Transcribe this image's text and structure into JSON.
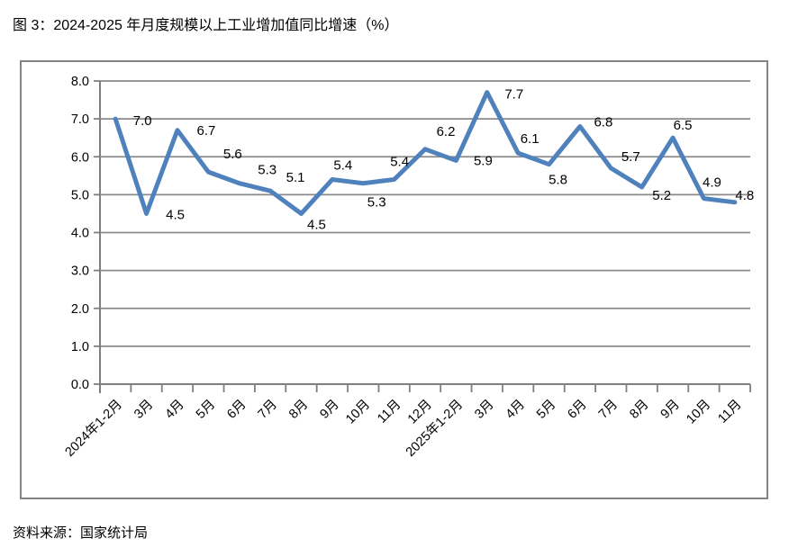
{
  "header": {
    "title": "图 3：2024-2025 年月度规模以上工业增加值同比增速（%）"
  },
  "footer": {
    "source": "资料来源：国家统计局"
  },
  "chart_data": {
    "type": "line",
    "title": "2024-2025 年月度规模以上工业增加值同比增速（%）",
    "categories": [
      "2024年1-2月",
      "3月",
      "4月",
      "5月",
      "6月",
      "7月",
      "8月",
      "9月",
      "10月",
      "11月",
      "12月",
      "2025年1-2月",
      "3月",
      "4月",
      "5月",
      "6月",
      "7月",
      "8月",
      "9月",
      "10月",
      "11月"
    ],
    "values": [
      7.0,
      4.5,
      6.7,
      5.6,
      5.3,
      5.1,
      4.5,
      5.4,
      5.3,
      5.4,
      6.2,
      5.9,
      7.7,
      6.1,
      5.8,
      6.8,
      5.7,
      5.2,
      6.5,
      4.9,
      4.8
    ],
    "data_label_texts": [
      "7.0",
      "4.5",
      "6.7",
      "5.6",
      "5.3",
      "5.1",
      "4.5",
      "5.4",
      "5.3",
      "5.4",
      "6.2",
      "5.9",
      "7.7",
      "6.1",
      "5.8",
      "6.8",
      "5.7",
      "5.2",
      "6.5",
      "4.9",
      "4.8"
    ],
    "xlabel": "",
    "ylabel": "",
    "ylim": [
      0.0,
      8.0
    ],
    "ytick_step": 1.0,
    "ytick_labels": [
      "0.0",
      "1.0",
      "2.0",
      "3.0",
      "4.0",
      "5.0",
      "6.0",
      "7.0",
      "8.0"
    ],
    "grid": "horizontal",
    "legend": "none",
    "line_color": "#4F81BD",
    "gridline_color": "#8A8A8A",
    "axis_color": "#7F7F7F",
    "label_color": "#000000"
  }
}
